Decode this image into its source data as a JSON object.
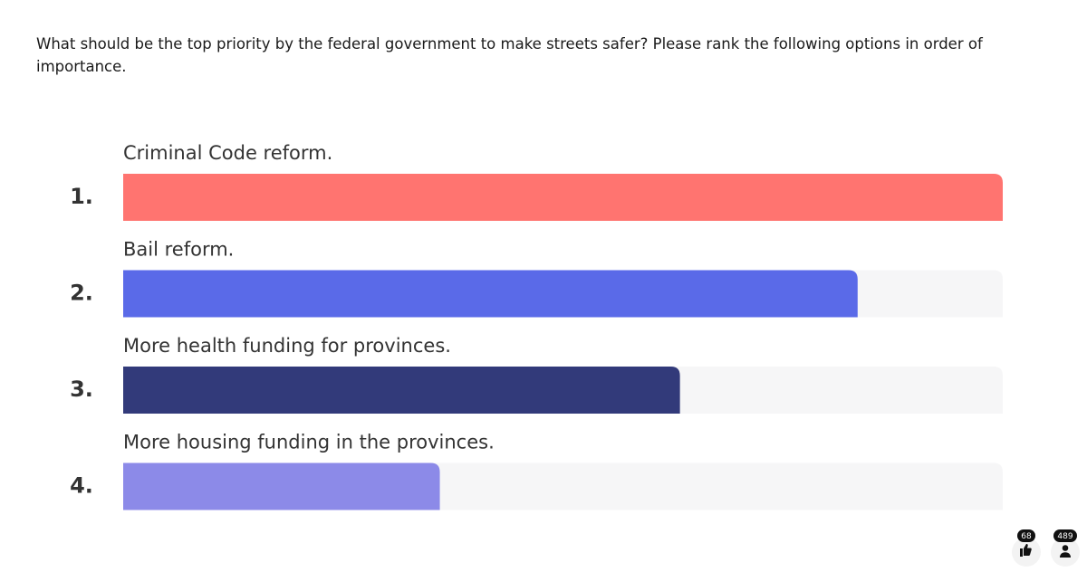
{
  "question": "What should be the top priority by the federal government to make streets safer? Please rank the following options in order of importance.",
  "chart_data": {
    "type": "bar",
    "categories": [
      "Criminal Code reform.",
      "Bail reform.",
      "More health funding for provinces.",
      "More housing funding in the provinces."
    ],
    "ranks": [
      "1.",
      "2.",
      "3.",
      "4."
    ],
    "values": [
      100,
      83.5,
      63.3,
      36
    ],
    "colors": [
      "#ff7470",
      "#5a6ae8",
      "#323a7a",
      "#8c8ae8"
    ],
    "xlim": [
      0,
      100
    ]
  },
  "reactions": {
    "likes": 68,
    "participants": 489
  }
}
